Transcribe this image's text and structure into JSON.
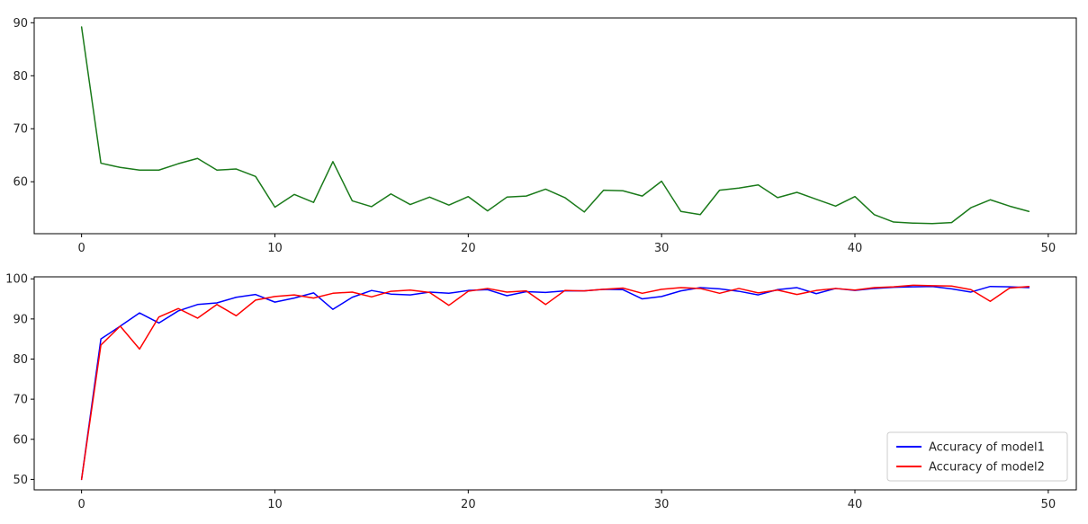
{
  "chart_data": [
    {
      "type": "line",
      "title": "",
      "xlabel": "",
      "ylabel": "",
      "xlim": [
        -2.45,
        51.45
      ],
      "ylim": [
        50.2,
        90.9
      ],
      "xticks": [
        0,
        10,
        20,
        30,
        40,
        50
      ],
      "yticks": [
        60,
        70,
        80,
        90
      ],
      "grid": false,
      "legend": null,
      "series": [
        {
          "name": "",
          "color": "#1a7a1a",
          "x": [
            0,
            1,
            2,
            3,
            4,
            5,
            6,
            7,
            8,
            9,
            10,
            11,
            12,
            13,
            14,
            15,
            16,
            17,
            18,
            19,
            20,
            21,
            22,
            23,
            24,
            25,
            26,
            27,
            28,
            29,
            30,
            31,
            32,
            33,
            34,
            35,
            36,
            37,
            38,
            39,
            40,
            41,
            42,
            43,
            44,
            45,
            46,
            47,
            48,
            49
          ],
          "y": [
            89.2,
            63.5,
            62.7,
            62.2,
            62.2,
            63.4,
            64.4,
            62.2,
            62.4,
            61.0,
            55.2,
            57.6,
            56.1,
            63.8,
            56.4,
            55.3,
            57.7,
            55.7,
            57.1,
            55.6,
            57.2,
            54.5,
            57.1,
            57.3,
            58.6,
            57.0,
            54.3,
            58.4,
            58.3,
            57.3,
            60.1,
            54.4,
            53.8,
            58.4,
            58.8,
            59.4,
            57.0,
            58.0,
            56.7,
            55.4,
            57.2,
            53.8,
            52.4,
            52.2,
            52.1,
            52.3,
            55.1,
            56.6,
            55.4,
            54.4
          ]
        }
      ]
    },
    {
      "type": "line",
      "title": "",
      "xlabel": "",
      "ylabel": "",
      "xlim": [
        -2.45,
        51.45
      ],
      "ylim": [
        47.4,
        100.5
      ],
      "xticks": [
        0,
        10,
        20,
        30,
        40,
        50
      ],
      "yticks": [
        50,
        60,
        70,
        80,
        90,
        100
      ],
      "grid": false,
      "legend": "lower-right",
      "series": [
        {
          "name": "Accuracy of model1",
          "color": "#0000ff",
          "x": [
            0,
            1,
            2,
            3,
            4,
            5,
            6,
            7,
            8,
            9,
            10,
            11,
            12,
            13,
            14,
            15,
            16,
            17,
            18,
            19,
            20,
            21,
            22,
            23,
            24,
            25,
            26,
            27,
            28,
            29,
            30,
            31,
            32,
            33,
            34,
            35,
            36,
            37,
            38,
            39,
            40,
            41,
            42,
            43,
            44,
            45,
            46,
            47,
            48,
            49
          ],
          "y": [
            50.0,
            85.0,
            88.2,
            91.5,
            89.0,
            92.0,
            93.6,
            94.0,
            95.4,
            96.1,
            94.2,
            95.2,
            96.5,
            92.4,
            95.4,
            97.1,
            96.2,
            96.0,
            96.7,
            96.4,
            97.1,
            97.3,
            95.8,
            96.8,
            96.6,
            97.0,
            97.0,
            97.4,
            97.3,
            95.0,
            95.6,
            97.0,
            97.8,
            97.5,
            96.9,
            96.0,
            97.3,
            97.8,
            96.3,
            97.6,
            97.1,
            97.6,
            97.9,
            98.0,
            98.1,
            97.5,
            96.7,
            98.1,
            98.0,
            97.8
          ]
        },
        {
          "name": "Accuracy of model2",
          "color": "#ff0000",
          "x": [
            0,
            1,
            2,
            3,
            4,
            5,
            6,
            7,
            8,
            9,
            10,
            11,
            12,
            13,
            14,
            15,
            16,
            17,
            18,
            19,
            20,
            21,
            22,
            23,
            24,
            25,
            26,
            27,
            28,
            29,
            30,
            31,
            32,
            33,
            34,
            35,
            36,
            37,
            38,
            39,
            40,
            41,
            42,
            43,
            44,
            45,
            46,
            47,
            48,
            49
          ],
          "y": [
            50.0,
            83.5,
            88.2,
            82.5,
            90.5,
            92.6,
            90.2,
            93.6,
            90.8,
            94.7,
            95.6,
            96.0,
            95.2,
            96.4,
            96.7,
            95.5,
            96.9,
            97.2,
            96.6,
            93.4,
            96.9,
            97.6,
            96.7,
            97.0,
            93.6,
            97.1,
            97.0,
            97.4,
            97.7,
            96.4,
            97.4,
            97.8,
            97.6,
            96.4,
            97.6,
            96.5,
            97.2,
            96.1,
            97.1,
            97.6,
            97.2,
            97.8,
            98.0,
            98.4,
            98.3,
            98.2,
            97.3,
            94.4,
            97.7,
            98.1
          ]
        }
      ]
    }
  ]
}
